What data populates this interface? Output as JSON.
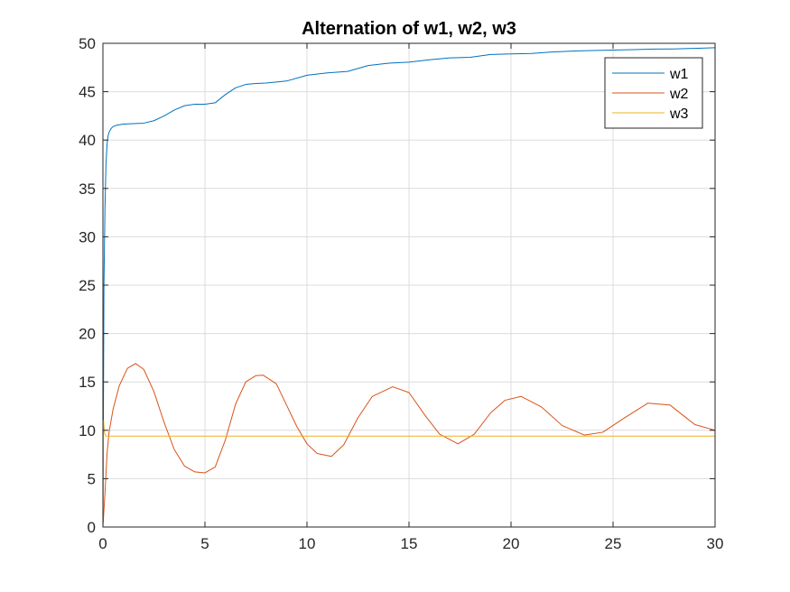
{
  "chart_data": {
    "type": "line",
    "title": "Alternation of w1, w2, w3",
    "xlabel": "",
    "ylabel": "",
    "xlim": [
      0,
      30
    ],
    "ylim": [
      0,
      50
    ],
    "xticks": [
      0,
      5,
      10,
      15,
      20,
      25,
      30
    ],
    "yticks": [
      0,
      5,
      10,
      15,
      20,
      25,
      30,
      35,
      40,
      45,
      50
    ],
    "grid": true,
    "legend_position": "top-right",
    "series": [
      {
        "name": "w1",
        "color": "#0072bd",
        "x": [
          0,
          0.05,
          0.1,
          0.15,
          0.2,
          0.25,
          0.3,
          0.4,
          0.5,
          0.7,
          1.0,
          1.5,
          2.0,
          2.5,
          3.0,
          3.5,
          4.0,
          4.5,
          5.0,
          5.5,
          6.0,
          6.5,
          7.0,
          7.5,
          8.0,
          9.0,
          10.0,
          11.0,
          12.0,
          13.0,
          14.0,
          15.0,
          16.0,
          17.0,
          18.0,
          19.0,
          20.0,
          21.0,
          22.0,
          23.0,
          24.0,
          25.0,
          26.0,
          27.0,
          28.0,
          29.0,
          30.0
        ],
        "y": [
          0,
          25,
          33,
          37.5,
          39.5,
          40.4,
          40.8,
          41.2,
          41.4,
          41.55,
          41.65,
          41.7,
          41.75,
          42.0,
          42.5,
          43.1,
          43.55,
          43.7,
          43.7,
          43.85,
          44.7,
          45.4,
          45.75,
          45.85,
          45.9,
          46.1,
          46.7,
          46.95,
          47.1,
          47.7,
          47.95,
          48.05,
          48.3,
          48.5,
          48.55,
          48.85,
          48.9,
          48.95,
          49.1,
          49.2,
          49.25,
          49.3,
          49.35,
          49.4,
          49.42,
          49.48,
          49.55
        ]
      },
      {
        "name": "w2",
        "color": "#d95319",
        "x": [
          0,
          0.1,
          0.2,
          0.3,
          0.5,
          0.8,
          1.2,
          1.6,
          2.0,
          2.5,
          3.0,
          3.5,
          4.0,
          4.5,
          5.0,
          5.5,
          6.0,
          6.5,
          7.0,
          7.5,
          7.85,
          8.5,
          9.0,
          9.5,
          10.0,
          10.5,
          11.2,
          11.8,
          12.5,
          13.2,
          14.2,
          15.0,
          15.8,
          16.5,
          17.4,
          18.2,
          19.0,
          19.7,
          20.5,
          21.5,
          22.5,
          23.6,
          24.5,
          25.5,
          26.7,
          27.8,
          29.0,
          30.0
        ],
        "y": [
          0,
          3.5,
          7.5,
          9.8,
          12.2,
          14.6,
          16.4,
          16.9,
          16.3,
          14.0,
          10.8,
          8.0,
          6.3,
          5.7,
          5.6,
          6.2,
          9.0,
          12.7,
          15.0,
          15.65,
          15.7,
          14.8,
          12.6,
          10.4,
          8.6,
          7.6,
          7.3,
          8.5,
          11.3,
          13.5,
          14.5,
          13.9,
          11.5,
          9.6,
          8.6,
          9.6,
          11.8,
          13.1,
          13.5,
          12.4,
          10.5,
          9.5,
          9.8,
          11.2,
          12.8,
          12.6,
          10.6,
          10.0
        ]
      },
      {
        "name": "w3",
        "color": "#edb120",
        "x": [
          0,
          0.03,
          0.08,
          0.15,
          30.0
        ],
        "y": [
          0,
          11.0,
          9.7,
          9.4,
          9.4
        ]
      }
    ]
  }
}
